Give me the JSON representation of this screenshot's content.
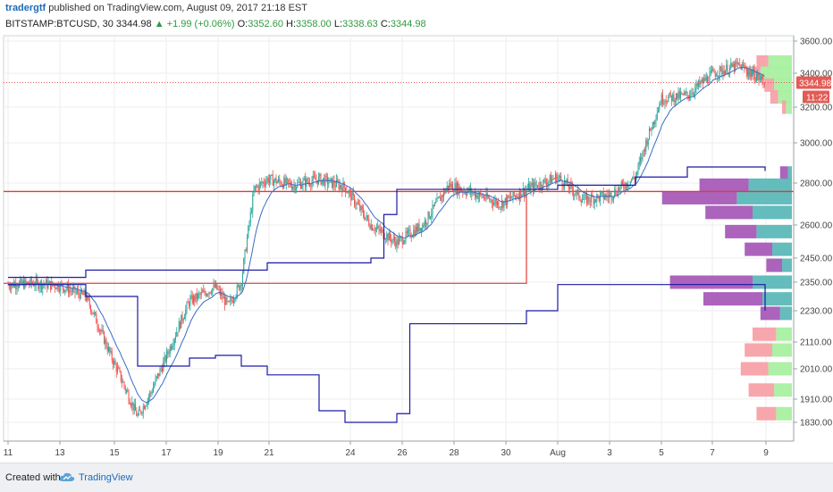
{
  "header": {
    "author": "tradergtf",
    "published": "published on TradingView.com, August 09, 2017 21:18 EST",
    "symbol": "BITSTAMP:BTCUSD, 30",
    "last": "3344.98",
    "change": "▲ +1.99 (+0.06%)",
    "o_label": "O:",
    "o_value": "3352.60",
    "h_label": "H:",
    "h_value": "3358.00",
    "l_label": "L:",
    "l_value": "3338.63",
    "c_label": "C:",
    "c_value": "3344.98"
  },
  "price_tag": {
    "value": "3344.98",
    "countdown": "11:22"
  },
  "footer": {
    "created_with": "Created with",
    "brand": "TradingView"
  },
  "colors": {
    "up": "#26a69a",
    "down": "#ef5350",
    "blue": "#1a1aa6",
    "red": "#e53935",
    "vp_up": "#5db8b8",
    "vp_down": "#a85bb8",
    "vp_green": "#a8f0a0",
    "vp_pink": "#f7a1a8",
    "tag": "#e25b55",
    "grid": "#eeeeee"
  },
  "chart_data": {
    "type": "candlestick",
    "yticks": [
      "3600.00",
      "3400.00",
      "3200.00",
      "3000.00",
      "2800.00",
      "2600.00",
      "2450.00",
      "2350.00",
      "2230.00",
      "2110.00",
      "2010.00",
      "1910.00",
      "1830.00"
    ],
    "xticks": [
      "11",
      "13",
      "15",
      "17",
      "19",
      "21",
      "24",
      "26",
      "28",
      "30",
      "Aug",
      "3",
      "5",
      "7",
      "9"
    ],
    "close_anchors": [
      {
        "date": "Jul 11",
        "price": 2340
      },
      {
        "date": "Jul 12",
        "price": 2345
      },
      {
        "date": "Jul 13",
        "price": 2335
      },
      {
        "date": "Jul 14",
        "price": 2290
      },
      {
        "date": "Jul 15",
        "price": 2050
      },
      {
        "date": "Jul 16",
        "price": 1850
      },
      {
        "date": "Jul 16.5",
        "price": 1930
      },
      {
        "date": "Jul 17",
        "price": 2030
      },
      {
        "date": "Jul 18",
        "price": 2270
      },
      {
        "date": "Jul 19",
        "price": 2330
      },
      {
        "date": "Jul 19.5",
        "price": 2250
      },
      {
        "date": "Jul 20",
        "price": 2350
      },
      {
        "date": "Jul 20.5",
        "price": 2770
      },
      {
        "date": "Jul 21",
        "price": 2820
      },
      {
        "date": "Jul 22",
        "price": 2790
      },
      {
        "date": "Jul 23",
        "price": 2820
      },
      {
        "date": "Jul 24",
        "price": 2780
      },
      {
        "date": "Jul 25",
        "price": 2600
      },
      {
        "date": "Jul 26",
        "price": 2520
      },
      {
        "date": "Jul 27",
        "price": 2600
      },
      {
        "date": "Jul 28",
        "price": 2790
      },
      {
        "date": "Jul 29",
        "price": 2750
      },
      {
        "date": "Jul 30",
        "price": 2700
      },
      {
        "date": "Jul 31",
        "price": 2770
      },
      {
        "date": "Aug 1",
        "price": 2830
      },
      {
        "date": "Aug 2",
        "price": 2720
      },
      {
        "date": "Aug 3",
        "price": 2740
      },
      {
        "date": "Aug 4",
        "price": 2830
      },
      {
        "date": "Aug 5",
        "price": 3250
      },
      {
        "date": "Aug 6",
        "price": 3270
      },
      {
        "date": "Aug 7",
        "price": 3400
      },
      {
        "date": "Aug 8",
        "price": 3450
      },
      {
        "date": "Aug 9",
        "price": 3345
      }
    ],
    "last_price": 3344.98,
    "channel_upper": [
      {
        "date": "Jul 11",
        "price": 2370
      },
      {
        "date": "Jul 14",
        "price": 2400
      },
      {
        "date": "Jul 20",
        "price": 2400
      },
      {
        "date": "Jul 21",
        "price": 2430
      },
      {
        "date": "Jul 25",
        "price": 2450
      },
      {
        "date": "Jul 25.5",
        "price": 2650
      },
      {
        "date": "Jul 26",
        "price": 2770
      },
      {
        "date": "Aug 1",
        "price": 2790
      },
      {
        "date": "Aug 4",
        "price": 2830
      },
      {
        "date": "Aug 6",
        "price": 2880
      },
      {
        "date": "Aug 9",
        "price": 2860
      }
    ],
    "channel_lower": [
      {
        "date": "Jul 11",
        "price": 2340
      },
      {
        "date": "Jul 14",
        "price": 2290
      },
      {
        "date": "Jul 16",
        "price": 2020
      },
      {
        "date": "Jul 18",
        "price": 2050
      },
      {
        "date": "Jul 19",
        "price": 2060
      },
      {
        "date": "Jul 20",
        "price": 2020
      },
      {
        "date": "Jul 21",
        "price": 1990
      },
      {
        "date": "Jul 23",
        "price": 1870
      },
      {
        "date": "Jul 24",
        "price": 1830
      },
      {
        "date": "Jul 26",
        "price": 1860
      },
      {
        "date": "Jul 26.5",
        "price": 2180
      },
      {
        "date": "Jul 30",
        "price": 2180
      },
      {
        "date": "Jul 31",
        "price": 2230
      },
      {
        "date": "Aug 1",
        "price": 2340
      },
      {
        "date": "Aug 9",
        "price": 2230
      }
    ],
    "red_levels": [
      {
        "from": "Jul 11",
        "to": "Jul 31",
        "price": 2345
      },
      {
        "from": "Jul 31.5",
        "to": "Aug 9",
        "price": 2760
      }
    ],
    "volume_profile": [
      {
        "price": 3470,
        "buy": 6,
        "sell": 12
      },
      {
        "price": 3400,
        "buy": 7,
        "sell": 16
      },
      {
        "price": 3330,
        "buy": 5,
        "sell": 9
      },
      {
        "price": 3260,
        "buy": 4,
        "sell": 7
      },
      {
        "price": 3200,
        "buy": 2,
        "sell": 3
      },
      {
        "price": 2850,
        "buy": 4,
        "sell": 2
      },
      {
        "price": 2790,
        "buy": 25,
        "sell": 22
      },
      {
        "price": 2730,
        "buy": 38,
        "sell": 28
      },
      {
        "price": 2660,
        "buy": 24,
        "sell": 20
      },
      {
        "price": 2570,
        "buy": 16,
        "sell": 18
      },
      {
        "price": 2490,
        "buy": 14,
        "sell": 10
      },
      {
        "price": 2420,
        "buy": 8,
        "sell": 5
      },
      {
        "price": 2350,
        "buy": 42,
        "sell": 20
      },
      {
        "price": 2280,
        "buy": 30,
        "sell": 15
      },
      {
        "price": 2220,
        "buy": 10,
        "sell": 6
      },
      {
        "price": 2140,
        "buy": 12,
        "sell": 8
      },
      {
        "price": 2080,
        "buy": 14,
        "sell": 10
      },
      {
        "price": 2010,
        "buy": 14,
        "sell": 12
      },
      {
        "price": 1940,
        "buy": 13,
        "sell": 9
      },
      {
        "price": 1860,
        "buy": 10,
        "sell": 8
      }
    ]
  }
}
